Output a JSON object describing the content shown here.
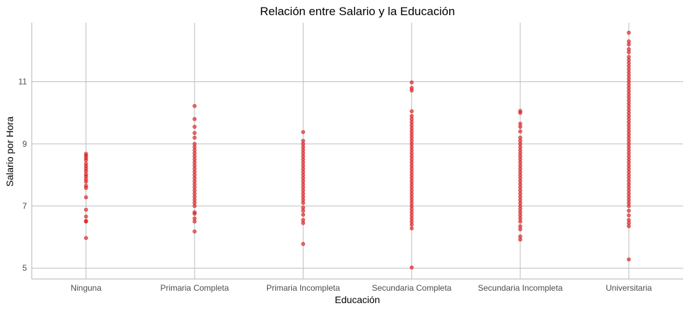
{
  "chart_data": {
    "type": "scatter",
    "title": "Relación entre Salario y la Educación",
    "xlabel": "Educación",
    "ylabel": "Salario por Hora",
    "categories": [
      "Ninguna",
      "Primaria Completa",
      "Primaria Incompleta",
      "Secundaria Completa",
      "Secundaria Incompleta",
      "Universitaria"
    ],
    "ylim": [
      4.65,
      12.9
    ],
    "yticks": [
      "5",
      "7",
      "9",
      "11"
    ],
    "grid": true,
    "point_color": "#e31a1c",
    "series": [
      {
        "category": "Ninguna",
        "y": [
          5.97,
          6.5,
          6.52,
          6.66,
          6.88,
          7.28,
          7.58,
          7.65,
          7.78,
          7.86,
          7.95,
          8.02,
          8.12,
          8.2,
          8.28,
          8.36,
          8.48,
          8.55,
          8.62,
          8.68
        ]
      },
      {
        "category": "Primaria Completa",
        "y": [
          6.18,
          6.5,
          6.6,
          6.75,
          6.8,
          7.0,
          7.1,
          7.2,
          7.3,
          7.4,
          7.5,
          7.6,
          7.7,
          7.8,
          7.9,
          8.0,
          8.1,
          8.2,
          8.3,
          8.4,
          8.5,
          8.6,
          8.7,
          8.8,
          8.9,
          9.0,
          9.2,
          9.35,
          9.55,
          9.8,
          10.22
        ]
      },
      {
        "category": "Primaria Incompleta",
        "y": [
          5.78,
          6.45,
          6.55,
          6.72,
          6.85,
          6.95,
          7.1,
          7.2,
          7.3,
          7.4,
          7.5,
          7.6,
          7.7,
          7.8,
          7.9,
          8.0,
          8.1,
          8.2,
          8.3,
          8.4,
          8.5,
          8.6,
          8.7,
          8.8,
          8.9,
          9.0,
          9.1,
          9.38
        ]
      },
      {
        "category": "Secundaria Completa",
        "y": [
          5.02,
          6.28,
          6.4,
          6.5,
          6.6,
          6.7,
          6.8,
          6.9,
          7.0,
          7.1,
          7.2,
          7.3,
          7.4,
          7.5,
          7.6,
          7.7,
          7.8,
          7.9,
          8.0,
          8.1,
          8.2,
          8.3,
          8.4,
          8.5,
          8.6,
          8.7,
          8.8,
          8.9,
          9.0,
          9.1,
          9.2,
          9.3,
          9.4,
          9.5,
          9.6,
          9.7,
          9.8,
          9.9,
          10.05,
          10.72,
          10.8,
          10.98
        ]
      },
      {
        "category": "Secundaria Incompleta",
        "y": [
          5.92,
          6.02,
          6.25,
          6.35,
          6.5,
          6.6,
          6.7,
          6.8,
          6.9,
          7.0,
          7.1,
          7.2,
          7.3,
          7.4,
          7.5,
          7.6,
          7.7,
          7.8,
          7.9,
          8.0,
          8.1,
          8.2,
          8.3,
          8.4,
          8.5,
          8.6,
          8.7,
          8.8,
          8.9,
          9.0,
          9.1,
          9.2,
          9.4,
          9.55,
          9.65,
          10.0,
          10.06
        ]
      },
      {
        "category": "Universitaria",
        "y": [
          5.28,
          6.35,
          6.45,
          6.55,
          6.7,
          6.85,
          7.0,
          7.1,
          7.2,
          7.3,
          7.4,
          7.5,
          7.6,
          7.7,
          7.8,
          7.9,
          8.0,
          8.1,
          8.2,
          8.3,
          8.4,
          8.5,
          8.6,
          8.7,
          8.8,
          8.9,
          9.0,
          9.1,
          9.2,
          9.3,
          9.4,
          9.5,
          9.6,
          9.7,
          9.8,
          9.9,
          10.0,
          10.1,
          10.2,
          10.3,
          10.4,
          10.5,
          10.6,
          10.7,
          10.8,
          10.9,
          11.0,
          11.1,
          11.2,
          11.3,
          11.4,
          11.5,
          11.6,
          11.7,
          11.8,
          11.95,
          12.05,
          12.2,
          12.3,
          12.58
        ]
      }
    ]
  }
}
